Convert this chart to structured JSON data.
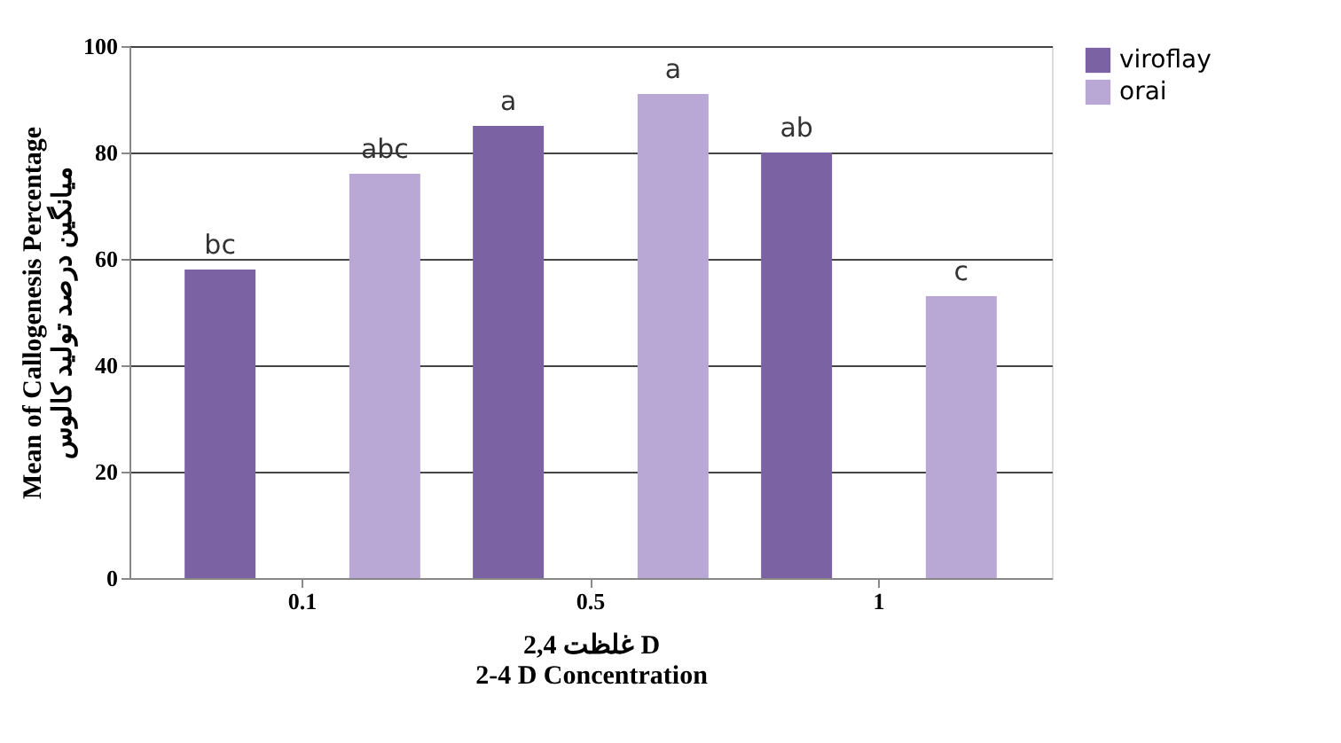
{
  "chart_data": {
    "type": "bar",
    "xlabel": "غلظت 2,4  D\n2-4 D Concentration",
    "ylabel": "Mean of Callogenesis Percentage\nمیانگین درصد تولید کالوس",
    "categories": [
      "0.1",
      "0.5",
      "1"
    ],
    "series": [
      {
        "name": "viroflay",
        "color": "#7b62a3",
        "values": [
          58,
          85,
          80
        ],
        "value_labels": [
          "bc",
          "a",
          "ab"
        ]
      },
      {
        "name": "orai",
        "color": "#b9a8d6",
        "values": [
          76,
          91,
          53
        ],
        "value_labels": [
          "abc",
          "a",
          "c"
        ]
      }
    ],
    "ylim": [
      0,
      100
    ],
    "yticks": [
      0,
      20,
      40,
      60,
      80,
      100
    ],
    "grid": "y",
    "legend": "right"
  }
}
